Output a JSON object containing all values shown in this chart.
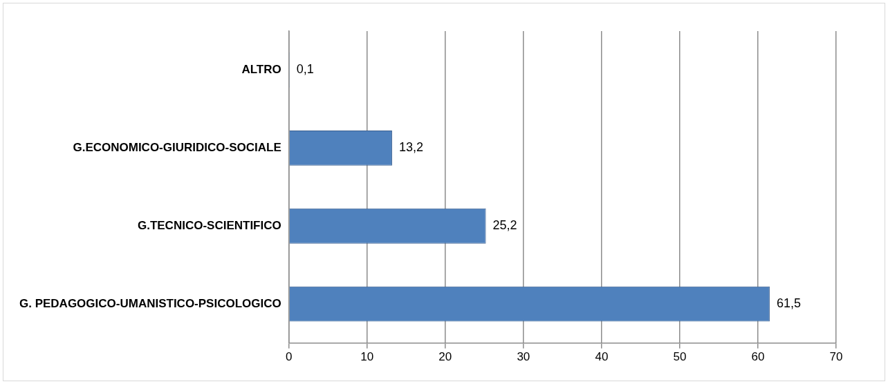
{
  "chart_data": {
    "type": "bar",
    "orientation": "horizontal",
    "categories": [
      "ALTRO",
      "G.ECONOMICO-GIURIDICO-SOCIALE",
      "G.TECNICO-SCIENTIFICO",
      "G. PEDAGOGICO-UMANISTICO-PSICOLOGICO"
    ],
    "values": [
      0.1,
      13.2,
      25.2,
      61.5
    ],
    "value_labels": [
      "0,1",
      "13,2",
      "25,2",
      "61,5"
    ],
    "color": "#4f81bd",
    "xlim": [
      0,
      70
    ],
    "xticks": [
      0,
      10,
      20,
      30,
      40,
      50,
      60,
      70
    ],
    "grid": "x",
    "legend": false
  }
}
